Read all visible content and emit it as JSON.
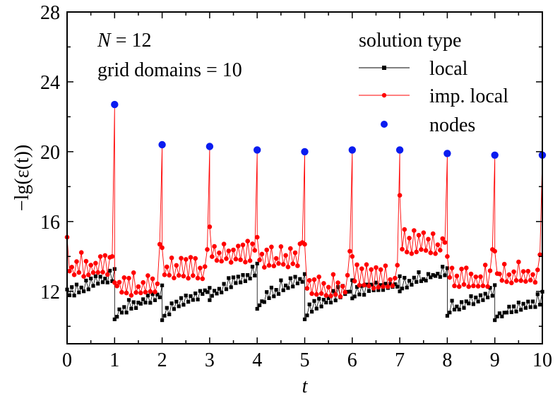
{
  "chart_data": {
    "type": "line",
    "xlabel": "t",
    "ylabel": "−lg(ε(t))",
    "xlim": [
      0,
      10
    ],
    "ylim": [
      9,
      28
    ],
    "x_ticks": [
      "0",
      "1",
      "2",
      "3",
      "4",
      "5",
      "6",
      "7",
      "8",
      "9",
      "10"
    ],
    "y_ticks": [
      "12",
      "16",
      "20",
      "24",
      "28"
    ],
    "annotations": [
      {
        "name": "N",
        "value": "12"
      },
      {
        "name": "grid domains",
        "value": "10"
      }
    ],
    "legend": {
      "title": "solution type",
      "placement": "top-right"
    },
    "series": [
      {
        "name": "local",
        "color": "#000000",
        "marker": "square",
        "segments": [
          {
            "start": 11.75,
            "end": 12.8,
            "t_peak": 13.0
          },
          {
            "start": 10.6,
            "end": 11.8,
            "t_peak": 11.85
          },
          {
            "start": 10.55,
            "end": 12.05,
            "t_peak": 12.2
          },
          {
            "start": 11.7,
            "end": 13.0,
            "t_peak": 13.05
          },
          {
            "start": 11.2,
            "end": 12.8,
            "t_peak": 12.85
          },
          {
            "start": 10.6,
            "end": 12.1,
            "t_peak": 12.25
          },
          {
            "start": 11.8,
            "end": 12.4,
            "t_peak": 12.45
          },
          {
            "start": 12.2,
            "end": 13.1,
            "t_peak": 13.2
          },
          {
            "start": 10.8,
            "end": 11.9,
            "t_peak": 11.95
          },
          {
            "start": 10.55,
            "end": 11.4,
            "t_peak": 11.45
          }
        ]
      },
      {
        "name": "imp. local",
        "color": "#ff0000",
        "marker": "circle",
        "segments": [
          {
            "base": 12.95,
            "start_value": 15.1,
            "near_node": 14.0
          },
          {
            "base": 11.85,
            "start_value": 12.5,
            "near_node": 14.7
          },
          {
            "base": 12.8,
            "start_value": 14.5,
            "near_node": 14.4
          },
          {
            "base": 13.75,
            "start_value": 15.7,
            "near_node": 14.35
          },
          {
            "base": 13.45,
            "start_value": 15.1,
            "near_node": 14.8
          },
          {
            "base": 11.8,
            "start_value": 14.7,
            "near_node": 14.3
          },
          {
            "base": 12.25,
            "start_value": 14.0,
            "near_node": 13.5
          },
          {
            "base": 14.25,
            "start_value": 17.5,
            "near_node": 14.8
          },
          {
            "base": 12.35,
            "start_value": 14.0,
            "near_node": 14.4
          },
          {
            "base": 12.55,
            "start_value": 14.3,
            "near_node": 14.1
          }
        ]
      },
      {
        "name": "nodes",
        "color": "#0a1cf0",
        "marker": "circle",
        "x": [
          1,
          2,
          3,
          4,
          5,
          6,
          7,
          8,
          9,
          10
        ],
        "y": [
          22.7,
          20.4,
          20.3,
          20.1,
          20.0,
          20.1,
          20.1,
          19.9,
          19.8,
          19.8
        ]
      }
    ]
  }
}
